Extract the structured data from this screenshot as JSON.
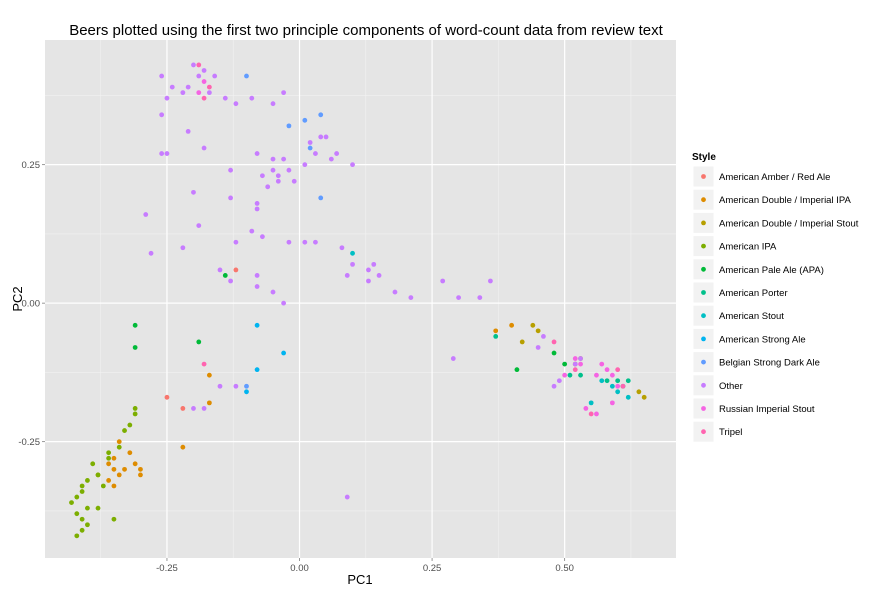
{
  "chart_data": {
    "type": "scatter",
    "title": "Beers plotted using the first two principle components of word-count data from review text",
    "xlabel": "PC1",
    "ylabel": "PC2",
    "xlim": [
      -0.48,
      0.71
    ],
    "ylim": [
      -0.46,
      0.475
    ],
    "x_ticks": [
      -0.25,
      0.0,
      0.25,
      0.5
    ],
    "x_tick_labels": [
      "-0.25",
      "0.00",
      "0.25",
      "0.50"
    ],
    "y_ticks": [
      -0.25,
      0.0,
      0.25
    ],
    "y_tick_labels": [
      "-0.25",
      "0.00",
      "0.25"
    ],
    "grid": true,
    "legend": {
      "title": "Style",
      "position": "right"
    },
    "series": [
      {
        "name": "American Amber / Red Ale",
        "color": "#F8766D",
        "points": [
          [
            -0.12,
            0.06
          ],
          [
            -0.25,
            -0.17
          ],
          [
            -0.22,
            -0.19
          ]
        ]
      },
      {
        "name": "American Double / Imperial IPA",
        "color": "#DE8C00",
        "points": [
          [
            -0.34,
            -0.25
          ],
          [
            -0.35,
            -0.28
          ],
          [
            -0.36,
            -0.29
          ],
          [
            -0.35,
            -0.3
          ],
          [
            -0.34,
            -0.31
          ],
          [
            -0.33,
            -0.3
          ],
          [
            -0.32,
            -0.27
          ],
          [
            -0.31,
            -0.29
          ],
          [
            -0.3,
            -0.3
          ],
          [
            -0.3,
            -0.31
          ],
          [
            -0.36,
            -0.32
          ],
          [
            -0.35,
            -0.33
          ],
          [
            -0.38,
            -0.31
          ],
          [
            -0.22,
            -0.26
          ],
          [
            -0.17,
            -0.13
          ],
          [
            -0.17,
            -0.18
          ],
          [
            0.37,
            -0.05
          ],
          [
            0.4,
            -0.04
          ]
        ]
      },
      {
        "name": "American Double / Imperial Stout",
        "color": "#B79F00",
        "points": [
          [
            0.42,
            -0.07
          ],
          [
            0.44,
            -0.04
          ],
          [
            0.45,
            -0.05
          ],
          [
            0.53,
            -0.1
          ],
          [
            0.52,
            -0.11
          ],
          [
            0.64,
            -0.16
          ],
          [
            0.65,
            -0.17
          ]
        ]
      },
      {
        "name": "American IPA",
        "color": "#7CAE00",
        "points": [
          [
            -0.43,
            -0.36
          ],
          [
            -0.42,
            -0.35
          ],
          [
            -0.41,
            -0.33
          ],
          [
            -0.42,
            -0.38
          ],
          [
            -0.4,
            -0.37
          ],
          [
            -0.41,
            -0.39
          ],
          [
            -0.4,
            -0.4
          ],
          [
            -0.39,
            -0.29
          ],
          [
            -0.4,
            -0.32
          ],
          [
            -0.41,
            -0.34
          ],
          [
            -0.38,
            -0.31
          ],
          [
            -0.37,
            -0.33
          ],
          [
            -0.36,
            -0.27
          ],
          [
            -0.34,
            -0.26
          ],
          [
            -0.33,
            -0.23
          ],
          [
            -0.32,
            -0.22
          ],
          [
            -0.31,
            -0.19
          ],
          [
            -0.31,
            -0.2
          ],
          [
            -0.35,
            -0.39
          ],
          [
            -0.42,
            -0.42
          ],
          [
            -0.38,
            -0.37
          ],
          [
            -0.36,
            -0.28
          ],
          [
            -0.41,
            -0.41
          ]
        ]
      },
      {
        "name": "American Pale Ale (APA)",
        "color": "#00BA38",
        "points": [
          [
            -0.31,
            -0.04
          ],
          [
            -0.31,
            -0.08
          ],
          [
            -0.14,
            0.05
          ],
          [
            -0.19,
            -0.07
          ],
          [
            0.41,
            -0.12
          ],
          [
            0.48,
            -0.09
          ],
          [
            0.5,
            -0.11
          ]
        ]
      },
      {
        "name": "American Porter",
        "color": "#00C08B",
        "points": [
          [
            0.37,
            -0.06
          ],
          [
            0.51,
            -0.13
          ],
          [
            0.53,
            -0.13
          ],
          [
            0.58,
            -0.14
          ],
          [
            0.6,
            -0.14
          ],
          [
            0.61,
            -0.15
          ],
          [
            0.62,
            -0.14
          ]
        ]
      },
      {
        "name": "American Stout",
        "color": "#00BFC4",
        "points": [
          [
            0.1,
            0.09
          ],
          [
            0.55,
            -0.18
          ],
          [
            0.57,
            -0.14
          ],
          [
            0.59,
            -0.15
          ],
          [
            0.6,
            -0.16
          ],
          [
            0.62,
            -0.17
          ]
        ]
      },
      {
        "name": "American Strong Ale",
        "color": "#00B4F0",
        "points": [
          [
            -0.08,
            -0.04
          ],
          [
            -0.08,
            -0.12
          ],
          [
            -0.1,
            -0.16
          ],
          [
            -0.03,
            -0.09
          ]
        ]
      },
      {
        "name": "Belgian Strong Dark Ale",
        "color": "#619CFF",
        "points": [
          [
            -0.1,
            0.41
          ],
          [
            -0.02,
            0.32
          ],
          [
            0.01,
            0.33
          ],
          [
            0.04,
            0.34
          ],
          [
            0.02,
            0.28
          ],
          [
            0.04,
            0.19
          ],
          [
            -0.1,
            -0.15
          ]
        ]
      },
      {
        "name": "Other",
        "color": "#C77CFF",
        "points": [
          [
            -0.26,
            0.41
          ],
          [
            -0.24,
            0.39
          ],
          [
            -0.22,
            0.38
          ],
          [
            -0.21,
            0.39
          ],
          [
            -0.2,
            0.43
          ],
          [
            -0.19,
            0.41
          ],
          [
            -0.18,
            0.42
          ],
          [
            -0.17,
            0.38
          ],
          [
            -0.25,
            0.37
          ],
          [
            -0.26,
            0.34
          ],
          [
            -0.21,
            0.31
          ],
          [
            -0.26,
            0.27
          ],
          [
            -0.25,
            0.27
          ],
          [
            -0.18,
            0.28
          ],
          [
            -0.16,
            0.41
          ],
          [
            -0.14,
            0.37
          ],
          [
            -0.12,
            0.36
          ],
          [
            -0.09,
            0.37
          ],
          [
            -0.03,
            0.38
          ],
          [
            -0.05,
            0.36
          ],
          [
            -0.08,
            0.27
          ],
          [
            -0.05,
            0.26
          ],
          [
            -0.03,
            0.26
          ],
          [
            -0.07,
            0.23
          ],
          [
            -0.05,
            0.24
          ],
          [
            -0.04,
            0.23
          ],
          [
            -0.02,
            0.24
          ],
          [
            -0.06,
            0.21
          ],
          [
            -0.04,
            0.22
          ],
          [
            -0.01,
            0.22
          ],
          [
            0.01,
            0.25
          ],
          [
            0.02,
            0.29
          ],
          [
            0.03,
            0.27
          ],
          [
            0.04,
            0.3
          ],
          [
            0.05,
            0.3
          ],
          [
            0.06,
            0.26
          ],
          [
            0.07,
            0.27
          ],
          [
            0.1,
            0.25
          ],
          [
            -0.13,
            0.24
          ],
          [
            -0.2,
            0.2
          ],
          [
            -0.13,
            0.19
          ],
          [
            -0.08,
            0.18
          ],
          [
            -0.08,
            0.17
          ],
          [
            -0.09,
            0.13
          ],
          [
            -0.07,
            0.12
          ],
          [
            -0.12,
            0.11
          ],
          [
            -0.19,
            0.14
          ],
          [
            -0.22,
            0.1
          ],
          [
            -0.29,
            0.16
          ],
          [
            -0.28,
            0.09
          ],
          [
            -0.15,
            0.06
          ],
          [
            -0.13,
            0.04
          ],
          [
            -0.08,
            0.05
          ],
          [
            -0.08,
            0.03
          ],
          [
            -0.05,
            0.02
          ],
          [
            -0.03,
            0.0
          ],
          [
            -0.02,
            0.11
          ],
          [
            0.01,
            0.11
          ],
          [
            0.03,
            0.11
          ],
          [
            0.08,
            0.1
          ],
          [
            0.09,
            0.05
          ],
          [
            0.1,
            0.07
          ],
          [
            0.13,
            0.06
          ],
          [
            0.14,
            0.07
          ],
          [
            0.15,
            0.05
          ],
          [
            0.13,
            0.04
          ],
          [
            0.18,
            0.02
          ],
          [
            0.21,
            0.01
          ],
          [
            0.27,
            0.04
          ],
          [
            0.3,
            0.01
          ],
          [
            0.34,
            0.01
          ],
          [
            0.36,
            0.04
          ],
          [
            0.29,
            -0.1
          ],
          [
            0.46,
            -0.06
          ],
          [
            0.48,
            -0.15
          ],
          [
            0.49,
            -0.14
          ],
          [
            0.52,
            -0.11
          ],
          [
            0.53,
            -0.1
          ],
          [
            0.45,
            -0.08
          ],
          [
            -0.12,
            -0.15
          ],
          [
            -0.2,
            -0.19
          ],
          [
            -0.18,
            -0.19
          ],
          [
            -0.15,
            -0.15
          ],
          [
            0.09,
            -0.35
          ]
        ]
      },
      {
        "name": "Russian Imperial Stout",
        "color": "#F564E3",
        "points": [
          [
            -0.18,
            0.4
          ],
          [
            -0.19,
            0.38
          ],
          [
            0.5,
            -0.13
          ],
          [
            0.52,
            -0.1
          ],
          [
            0.53,
            -0.11
          ],
          [
            0.56,
            -0.13
          ],
          [
            0.57,
            -0.11
          ],
          [
            0.58,
            -0.12
          ],
          [
            0.59,
            -0.13
          ],
          [
            0.6,
            -0.15
          ],
          [
            0.54,
            -0.19
          ],
          [
            0.56,
            -0.2
          ],
          [
            0.59,
            -0.18
          ]
        ]
      },
      {
        "name": "Tripel",
        "color": "#FF64B0",
        "points": [
          [
            -0.19,
            0.43
          ],
          [
            -0.18,
            0.37
          ],
          [
            -0.17,
            0.39
          ],
          [
            -0.18,
            -0.11
          ],
          [
            0.48,
            -0.07
          ],
          [
            0.52,
            -0.12
          ],
          [
            0.55,
            -0.2
          ],
          [
            0.6,
            -0.12
          ],
          [
            0.61,
            -0.15
          ]
        ]
      }
    ]
  }
}
